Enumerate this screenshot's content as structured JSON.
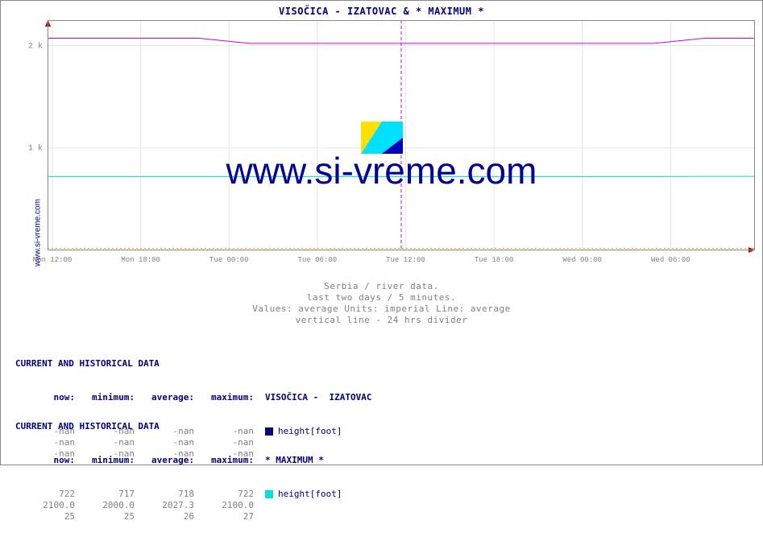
{
  "sidelabel": "www.si-vreme.com",
  "title": "VISOČICA -  IZATOVAC & * MAXIMUM *",
  "watermark": "www.si-vreme.com",
  "chart": {
    "type": "line",
    "background_color": "#ffffff",
    "border_color": "#888888",
    "grid_color": "#e5e5e5",
    "axis_line_color": "#c00000",
    "axis_arrow_color": "#c00000",
    "divider_color": "#d000d0",
    "ylim": [
      0,
      2200
    ],
    "yticks": [
      {
        "y": 1000,
        "label": "1 k"
      },
      {
        "y": 2000,
        "label": "2 k"
      }
    ],
    "ytick_label_color": "#808080",
    "ytick_label_fontsize": 10,
    "xticks": [
      "Mon 12:00",
      "Mon 18:00",
      "Tue 00:00",
      "Tue 06:00",
      "Tue 12:00",
      "Tue 18:00",
      "Wed 00:00",
      "Wed 06:00"
    ],
    "xtick_label_color": "#808080",
    "xtick_label_fontsize": 9,
    "baseline_dotted_color": "#d0b000",
    "baseline_dotted_y": 20,
    "divider_x_ratio": 0.5,
    "series": [
      {
        "name": "visocica-izatovac",
        "color": "#d000d0",
        "line_width": 1,
        "points_y": [
          2070,
          2070,
          2070,
          2070,
          2020,
          2020,
          2020,
          2020,
          2020,
          2020,
          2020,
          2020,
          2020,
          2070,
          2070
        ]
      },
      {
        "name": "maximum",
        "color": "#00d8d0",
        "line_width": 1,
        "points_y": [
          720,
          720,
          720,
          720,
          720,
          720,
          720,
          720,
          720,
          720,
          720,
          720,
          720,
          722,
          722
        ]
      }
    ]
  },
  "subhead": {
    "line1": "Serbia / river data.",
    "line2": "last two days / 5 minutes.",
    "line3": "Values: average  Units: imperial  Line: average",
    "line4": "vertical line - 24 hrs  divider"
  },
  "block_a": {
    "title": "CURRENT AND HISTORICAL DATA",
    "cols": [
      "now:",
      "minimum:",
      "average:",
      "maximum:"
    ],
    "series_name": "VISOČICA -  IZATOVAC",
    "legend_color": "#000080",
    "legend_label": "height[foot]",
    "rows": [
      [
        "-nan",
        "-nan",
        "-nan",
        "-nan"
      ],
      [
        "-nan",
        "-nan",
        "-nan",
        "-nan"
      ],
      [
        "-nan",
        "-nan",
        "-nan",
        "-nan"
      ]
    ]
  },
  "block_b": {
    "title": "CURRENT AND HISTORICAL DATA",
    "cols": [
      "now:",
      "minimum:",
      "average:",
      "maximum:"
    ],
    "series_name": "* MAXIMUM *",
    "legend_color": "#00e0d8",
    "legend_label": "height[foot]",
    "rows": [
      [
        "722",
        "717",
        "718",
        "722"
      ],
      [
        "2100.0",
        "2000.0",
        "2027.3",
        "2100.0"
      ],
      [
        "25",
        "25",
        "26",
        "27"
      ]
    ]
  }
}
